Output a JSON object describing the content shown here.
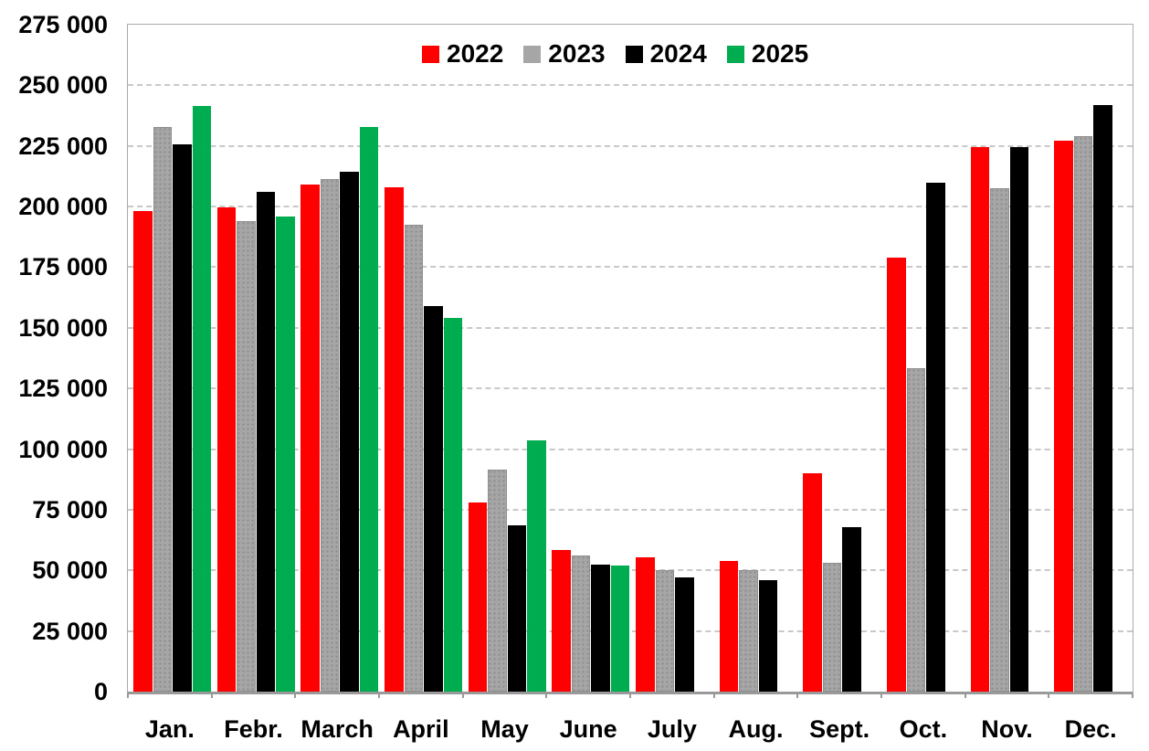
{
  "chart_data": {
    "type": "bar",
    "title": "",
    "xlabel": "",
    "ylabel": "",
    "categories": [
      "Jan.",
      "Febr.",
      "March",
      "April",
      "May",
      "June",
      "July",
      "Aug.",
      "Sept.",
      "Oct.",
      "Nov.",
      "Dec."
    ],
    "series": [
      {
        "name": "2022",
        "color": "#FE0000",
        "values": [
          198000,
          199500,
          209000,
          208000,
          78000,
          58500,
          55500,
          54000,
          90000,
          179000,
          224500,
          227000
        ]
      },
      {
        "name": "2023",
        "color": "#A6A6A6",
        "values": [
          233000,
          194000,
          211500,
          192500,
          91500,
          56000,
          50000,
          50000,
          53000,
          133500,
          207500,
          229000
        ]
      },
      {
        "name": "2024",
        "color": "#000000",
        "values": [
          225500,
          206000,
          214500,
          159000,
          68500,
          52500,
          47000,
          46000,
          68000,
          210000,
          224500,
          242000
        ]
      },
      {
        "name": "2025",
        "color": "#00AC50",
        "values": [
          241500,
          196000,
          233000,
          154000,
          103500,
          52000,
          null,
          null,
          null,
          null,
          null,
          null
        ]
      }
    ],
    "ylim": [
      0,
      275000
    ],
    "ytick_step": 25000,
    "y_tick_labels": [
      "0",
      "25 000",
      "50 000",
      "75 000",
      "100 000",
      "125 000",
      "150 000",
      "175 000",
      "200 000",
      "225 000",
      "250 000",
      "275 000"
    ],
    "grid": "horizontal-dashed",
    "gridline_color": "#C9C9C9",
    "legend_position": "top-inside",
    "background_color": "#FFFFFF"
  }
}
